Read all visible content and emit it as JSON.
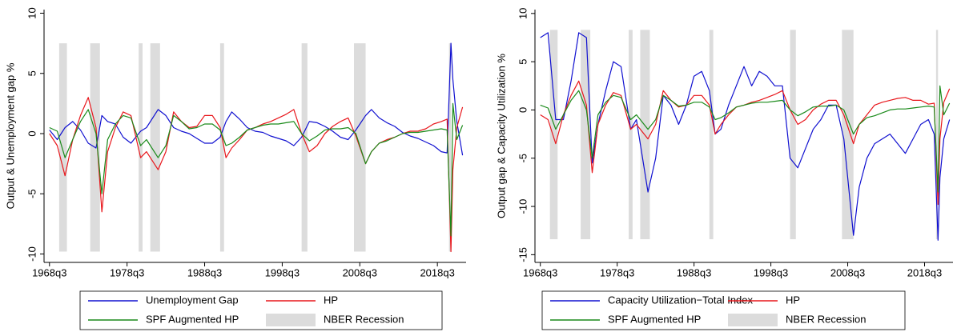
{
  "chart_data": [
    {
      "type": "line",
      "ylabel": "Output & Unemployment gap %",
      "xlim": [
        1967.8,
        2022.2
      ],
      "ylim": [
        -10.7,
        10.3
      ],
      "xticks": [
        {
          "value": 1968.5,
          "label": "1968q3"
        },
        {
          "value": 1978.5,
          "label": "1978q3"
        },
        {
          "value": 1988.5,
          "label": "1988q3"
        },
        {
          "value": 1998.5,
          "label": "1998q3"
        },
        {
          "value": 2008.5,
          "label": "2008q3"
        },
        {
          "value": 2018.5,
          "label": "2018q3"
        }
      ],
      "yticks": [
        -10,
        -5,
        0,
        5,
        10
      ],
      "x": [
        1968.5,
        1969.5,
        1970.5,
        1971.5,
        1972.5,
        1973.5,
        1974.5,
        1975.25,
        1976,
        1977,
        1978,
        1979,
        1980.25,
        1981,
        1982.5,
        1983.5,
        1984.5,
        1985.5,
        1986.5,
        1987.5,
        1988.5,
        1989.5,
        1990.5,
        1991.25,
        1992,
        1993,
        1994,
        1995,
        1996,
        1997,
        1998,
        1999,
        2000,
        2001,
        2002,
        2003,
        2004,
        2005,
        2006,
        2007,
        2008,
        2009.25,
        2010,
        2011,
        2012,
        2013,
        2014,
        2015,
        2016,
        2017,
        2018,
        2019,
        2019.75,
        2020.25,
        2020.5,
        2021,
        2021.75
      ],
      "series": [
        {
          "name": "Unemployment Gap",
          "color": "#1010d0",
          "values": [
            0.3,
            -0.5,
            0.5,
            1.0,
            0.3,
            -0.8,
            -1.2,
            1.5,
            1.0,
            0.8,
            -0.3,
            -0.8,
            0.2,
            0.5,
            2.0,
            1.5,
            0.5,
            0.2,
            0,
            -0.4,
            -0.8,
            -0.8,
            -0.3,
            1.0,
            1.8,
            1.2,
            0.5,
            0.2,
            0.1,
            -0.2,
            -0.4,
            -0.6,
            -1.0,
            -0.3,
            1.0,
            0.9,
            0.6,
            0.2,
            -0.3,
            -0.5,
            0.3,
            1.5,
            2.0,
            1.3,
            0.9,
            0.6,
            0.1,
            -0.2,
            -0.4,
            -0.7,
            -1.0,
            -1.5,
            -1.6,
            7.5,
            4.5,
            1.0,
            -1.8
          ]
        },
        {
          "name": "HP",
          "color": "#e8161b",
          "values": [
            0.0,
            -1.0,
            -3.5,
            -0.5,
            1.5,
            3.0,
            0.5,
            -6.5,
            -1.5,
            0.5,
            1.8,
            1.5,
            -2.0,
            -1.5,
            -3.0,
            -1.5,
            1.8,
            1.0,
            0.5,
            0.6,
            1.5,
            1.5,
            0.5,
            -2.0,
            -1.2,
            -0.5,
            0.3,
            0.5,
            0.8,
            1.0,
            1.3,
            1.6,
            2.0,
            0.0,
            -1.5,
            -1.0,
            0.0,
            0.6,
            1.0,
            1.3,
            -0.2,
            -2.5,
            -1.5,
            -0.8,
            -0.5,
            -0.3,
            0,
            0.2,
            0.2,
            0.4,
            0.8,
            1.0,
            1.2,
            -9.8,
            -3.0,
            0.5,
            2.2
          ]
        },
        {
          "name": "SPF Augmented HP",
          "color": "#1a8a1a",
          "values": [
            0.5,
            0.2,
            -2.0,
            -0.5,
            1.0,
            2.0,
            0.0,
            -5.0,
            -0.5,
            0.8,
            1.5,
            1.3,
            -1.0,
            -0.5,
            -2.0,
            -1.0,
            1.5,
            1.0,
            0.4,
            0.5,
            0.8,
            0.8,
            0.3,
            -1.0,
            -0.8,
            -0.3,
            0.3,
            0.5,
            0.7,
            0.8,
            0.8,
            0.9,
            1.0,
            0.0,
            -0.6,
            -0.2,
            0.3,
            0.4,
            0.4,
            0.5,
            0.0,
            -2.5,
            -1.5,
            -0.8,
            -0.6,
            -0.3,
            0,
            0.1,
            0.1,
            0.2,
            0.3,
            0.4,
            0.3,
            -8.5,
            2.5,
            -0.5,
            0.7
          ]
        }
      ],
      "recession": {
        "name": "NBER Recession",
        "color": "#dcdcdc",
        "range": [
          -9.8,
          7.5
        ],
        "spans": [
          [
            1969.75,
            1970.75
          ],
          [
            1973.75,
            1975.0
          ],
          [
            1980.0,
            1980.5
          ],
          [
            1981.5,
            1982.75
          ],
          [
            1990.5,
            1991.0
          ],
          [
            2001.0,
            2001.75
          ],
          [
            2007.75,
            2009.25
          ],
          [
            2020.0,
            2020.25
          ]
        ]
      }
    },
    {
      "type": "line",
      "ylabel": "Output gap & Capacity Utilization %",
      "xlim": [
        1967.8,
        2022.2
      ],
      "ylim": [
        -15.8,
        10.4
      ],
      "xticks": [
        {
          "value": 1968.5,
          "label": "1968q3"
        },
        {
          "value": 1978.5,
          "label": "1978q3"
        },
        {
          "value": 1988.5,
          "label": "1988q3"
        },
        {
          "value": 1998.5,
          "label": "1998q3"
        },
        {
          "value": 2008.5,
          "label": "2008q3"
        },
        {
          "value": 2018.5,
          "label": "2018q3"
        }
      ],
      "yticks": [
        -15,
        -10,
        -5,
        0,
        5,
        10
      ],
      "x": [
        1968.5,
        1969.5,
        1970.5,
        1971.5,
        1972.5,
        1973.5,
        1974.5,
        1975.25,
        1976,
        1977,
        1978,
        1979,
        1980.25,
        1981,
        1982.5,
        1983.5,
        1984.5,
        1985.5,
        1986.5,
        1987.5,
        1988.5,
        1989.5,
        1990.5,
        1991.25,
        1992,
        1993,
        1994,
        1995,
        1996,
        1997,
        1998,
        1999,
        2000,
        2001,
        2002,
        2003,
        2004,
        2005,
        2006,
        2007,
        2008,
        2009.25,
        2010,
        2011,
        2012,
        2013,
        2014,
        2015,
        2016,
        2017,
        2018,
        2019,
        2019.75,
        2020.25,
        2020.5,
        2021,
        2021.75
      ],
      "series": [
        {
          "name": "Capacity Utilization−Total Index",
          "color": "#1010d0",
          "values": [
            7.5,
            8.0,
            -1.0,
            -1.0,
            3.0,
            8.0,
            7.5,
            -5.5,
            -1.5,
            2.0,
            5.0,
            4.5,
            -2.0,
            -1.0,
            -8.5,
            -5.0,
            1.5,
            0.5,
            -1.5,
            0.5,
            3.5,
            4.0,
            2.0,
            -2.5,
            -2.0,
            0.5,
            2.5,
            4.5,
            2.5,
            4.0,
            3.5,
            2.5,
            2.5,
            -5.0,
            -6.0,
            -4.0,
            -2.0,
            -1.0,
            0.5,
            0.5,
            -3.0,
            -13.0,
            -8.0,
            -5.0,
            -3.5,
            -3.0,
            -2.5,
            -3.5,
            -4.5,
            -3.0,
            -1.5,
            -1.0,
            -2.5,
            -13.5,
            -7.0,
            -3.0,
            -1.0
          ]
        },
        {
          "name": "HP",
          "color": "#e8161b",
          "values": [
            -0.5,
            -1.0,
            -3.5,
            -0.5,
            1.5,
            3.0,
            0.5,
            -6.5,
            -1.5,
            0.5,
            1.8,
            1.5,
            -2.0,
            -1.5,
            -3.0,
            -1.5,
            2.0,
            1.0,
            0.3,
            0.5,
            1.5,
            1.5,
            0.5,
            -2.5,
            -1.5,
            -0.5,
            0.3,
            0.5,
            0.8,
            1.0,
            1.3,
            1.6,
            2.0,
            0.0,
            -1.5,
            -1.0,
            0.0,
            0.6,
            1.0,
            1.0,
            -0.5,
            -3.5,
            -1.5,
            -0.5,
            0.5,
            0.8,
            1.0,
            1.2,
            1.3,
            1.0,
            1.0,
            0.6,
            0.7,
            -9.8,
            -3.0,
            0.8,
            2.2
          ]
        },
        {
          "name": "SPF Augmented HP",
          "color": "#1a8a1a",
          "values": [
            0.5,
            0.2,
            -2.0,
            -0.5,
            1.0,
            2.0,
            0.0,
            -5.0,
            -0.5,
            0.8,
            1.5,
            1.3,
            -1.0,
            -0.5,
            -2.0,
            -1.0,
            1.5,
            1.0,
            0.4,
            0.5,
            0.8,
            0.8,
            0.3,
            -1.0,
            -0.8,
            -0.3,
            0.3,
            0.5,
            0.7,
            0.8,
            0.8,
            0.9,
            1.0,
            0.0,
            -0.6,
            -0.2,
            0.3,
            0.4,
            0.4,
            0.5,
            0.0,
            -2.5,
            -1.5,
            -0.8,
            -0.6,
            -0.3,
            0,
            0.1,
            0.1,
            0.2,
            0.3,
            0.4,
            0.3,
            -8.5,
            2.5,
            -0.5,
            0.7
          ]
        }
      ],
      "recession": {
        "name": "NBER Recession",
        "color": "#dcdcdc",
        "range": [
          -13.4,
          8.3
        ],
        "spans": [
          [
            1969.75,
            1970.75
          ],
          [
            1973.75,
            1975.0
          ],
          [
            1980.0,
            1980.5
          ],
          [
            1981.5,
            1982.75
          ],
          [
            1990.5,
            1991.0
          ],
          [
            2001.0,
            2001.75
          ],
          [
            2007.75,
            2009.25
          ],
          [
            2020.0,
            2020.25
          ]
        ]
      }
    }
  ]
}
